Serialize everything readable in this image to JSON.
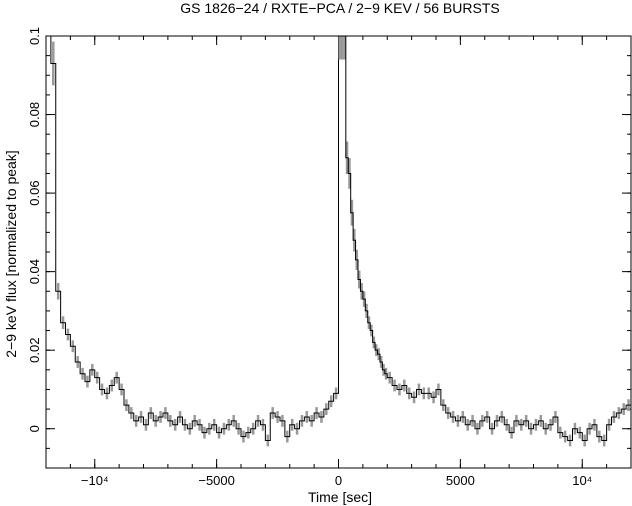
{
  "chart_data": {
    "type": "line",
    "title": "GS 1826−24 / RXTE−PCA / 2−9 KEV / 56 BURSTS",
    "xlabel": "Time [sec]",
    "ylabel": "2−9 keV flux [normalized to peak]",
    "xlim": [
      -12000,
      12000
    ],
    "ylim": [
      -0.01,
      0.1
    ],
    "xticks": [
      {
        "value": -10000,
        "label": "−10⁴"
      },
      {
        "value": -5000,
        "label": "−5000"
      },
      {
        "value": 0,
        "label": "0"
      },
      {
        "value": 5000,
        "label": "5000"
      },
      {
        "value": 10000,
        "label": "10⁴"
      }
    ],
    "yticks": [
      {
        "value": 0,
        "label": "0"
      },
      {
        "value": 0.02,
        "label": "0.02"
      },
      {
        "value": 0.04,
        "label": "0.04"
      },
      {
        "value": 0.06,
        "label": "0.06"
      },
      {
        "value": 0.08,
        "label": "0.08"
      },
      {
        "value": 0.1,
        "label": "0.1"
      }
    ],
    "grid": false,
    "series": [
      {
        "x": [
          -11800,
          -11600,
          -11400,
          -11200,
          -11000,
          -10800,
          -10600,
          -10400,
          -10200,
          -10000,
          -9800,
          -9600,
          -9400,
          -9200,
          -9000,
          -8800,
          -8600,
          -8400,
          -8200,
          -8000,
          -7800,
          -7600,
          -7400,
          -7200,
          -7000,
          -6800,
          -6600,
          -6400,
          -6200,
          -6000,
          -5800,
          -5600,
          -5400,
          -5200,
          -5000,
          -4800,
          -4600,
          -4400,
          -4200,
          -4000,
          -3800,
          -3600,
          -3400,
          -3200,
          -3000,
          -2800,
          -2600,
          -2400,
          -2200,
          -2000,
          -1800,
          -1600,
          -1400,
          -1200,
          -1000,
          -800,
          -600,
          -400,
          -200
        ],
        "y": [
          0.093,
          0.035,
          0.027,
          0.024,
          0.021,
          0.017,
          0.014,
          0.012,
          0.015,
          0.013,
          0.01,
          0.009,
          0.011,
          0.013,
          0.01,
          0.006,
          0.004,
          0.002,
          0.003,
          0.001,
          0.004,
          0.002,
          0.003,
          0.004,
          0.002,
          0.001,
          0.003,
          0.001,
          0.0,
          0.002,
          0.001,
          -0.001,
          0.0,
          0.001,
          -0.001,
          0.0,
          0.001,
          0.002,
          0.0,
          -0.002,
          -0.001,
          0.0,
          0.002,
          0.001,
          -0.003,
          0.004,
          0.003,
          0.002,
          -0.002,
          0.001,
          0.0,
          0.002,
          0.003,
          0.002,
          0.004,
          0.003,
          0.005,
          0.007,
          0.009
        ]
      },
      {
        "x": [
          0,
          100,
          200,
          300,
          400,
          500,
          600,
          700,
          800,
          900,
          1000,
          1100,
          1200,
          1300,
          1400,
          1500,
          1600,
          1700,
          1800,
          1900,
          2000,
          2200,
          2400,
          2600,
          2800,
          3000,
          3200,
          3400,
          3600,
          3800,
          4000,
          4200,
          4400,
          4600,
          4800,
          5000,
          5200,
          5400,
          5600,
          5800,
          6000,
          6200,
          6400,
          6600,
          6800,
          7000,
          7200,
          7400,
          7600,
          7800,
          8000,
          8200,
          8400,
          8600,
          8800,
          9000,
          9200,
          9400,
          9600,
          9800,
          10000,
          10200,
          10400,
          10600,
          10800,
          11000,
          11200,
          11400,
          11600,
          11800
        ],
        "y": [
          0.1,
          0.1,
          0.1,
          0.069,
          0.065,
          0.055,
          0.048,
          0.043,
          0.038,
          0.035,
          0.033,
          0.03,
          0.027,
          0.025,
          0.022,
          0.02,
          0.019,
          0.017,
          0.015,
          0.014,
          0.013,
          0.011,
          0.01,
          0.011,
          0.009,
          0.008,
          0.01,
          0.009,
          0.009,
          0.008,
          0.01,
          0.006,
          0.004,
          0.003,
          0.002,
          0.003,
          0.001,
          0.002,
          0.0,
          0.002,
          0.003,
          0.0,
          0.002,
          0.003,
          0.001,
          -0.001,
          0.002,
          0.001,
          0.002,
          0.0,
          0.001,
          0.002,
          0.0,
          0.001,
          0.003,
          -0.001,
          -0.002,
          -0.003,
          0.0,
          -0.001,
          -0.003,
          0.0,
          0.001,
          -0.002,
          -0.003,
          0.001,
          0.003,
          0.004,
          0.005,
          0.006
        ]
      }
    ]
  }
}
